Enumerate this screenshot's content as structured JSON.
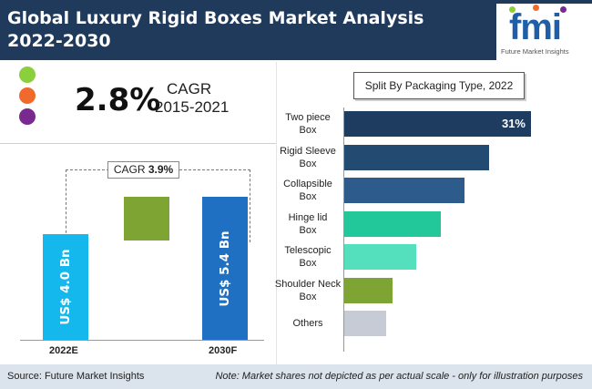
{
  "header": {
    "title": "Global Luxury Rigid Boxes Market Analysis 2022-2030"
  },
  "logo": {
    "text": "fmi",
    "subtitle": "Future Market Insights"
  },
  "colors": {
    "header_bg": "#1f3a5a",
    "legend_green": "#8ccf3c",
    "legend_orange": "#f06a2b",
    "legend_purple": "#7a2a8f",
    "bar_2022": "#14b8ec",
    "bar_increment": "#7ea433",
    "bar_2030": "#1f6fc2",
    "footer_bg": "#dbe3ec"
  },
  "cagr_summary": {
    "value": "2.8%",
    "label": "CAGR",
    "years": "2015-2021"
  },
  "market_value": {
    "cagr_label": "CAGR",
    "cagr_value": "3.9%",
    "start": {
      "year": "2022E",
      "label": "US$ 4.0 Bn",
      "value": 4.0
    },
    "end": {
      "year": "2030F",
      "label": "US$ 5.4 Bn",
      "value": 5.4
    }
  },
  "chart_data": {
    "type": "bar",
    "orientation": "horizontal",
    "title": "Split By Packaging Type, 2022",
    "categories": [
      "Two piece Box",
      "Rigid Sleeve Box",
      "Collapsible Box",
      "Hinge lid Box",
      "Telescopic Box",
      "Shoulder Neck Box",
      "Others"
    ],
    "values": [
      31,
      24,
      20,
      16,
      12,
      8,
      7
    ],
    "data_labels": [
      "31%",
      "",
      "",
      "",
      "",
      "",
      ""
    ],
    "colors": [
      "#1e3c5f",
      "#234a70",
      "#2d5b8c",
      "#22c79a",
      "#55e0bd",
      "#7ea433",
      "#c6cbd6"
    ],
    "xlim": [
      0,
      31
    ],
    "grid": false
  },
  "footer": {
    "source": "Source: Future Market Insights",
    "note": "Note: Market shares not depicted as per actual scale - only for illustration purposes"
  }
}
